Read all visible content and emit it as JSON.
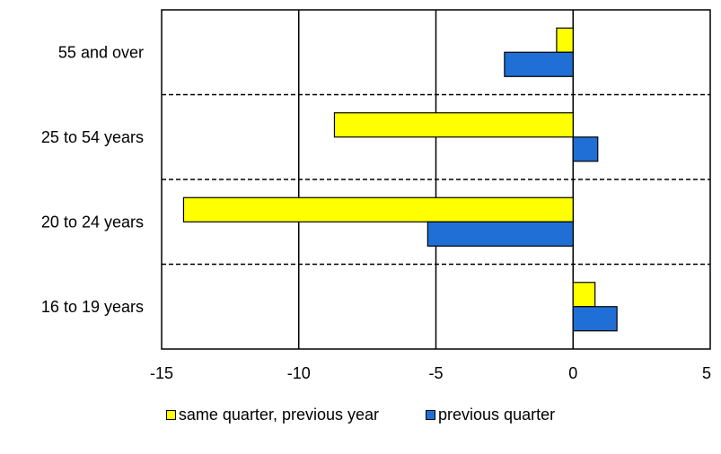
{
  "chart_data": {
    "type": "bar",
    "orientation": "horizontal",
    "categories": [
      "55 and over",
      "25 to 54 years",
      "20 to 24 years",
      "16 to 19 years"
    ],
    "series": [
      {
        "name": "same quarter, previous year",
        "color": "#ffff00",
        "values": [
          -0.6,
          -8.7,
          -14.2,
          0.8
        ]
      },
      {
        "name": "previous quarter",
        "color": "#1f6fd6",
        "values": [
          -2.5,
          0.9,
          -5.3,
          1.6
        ]
      }
    ],
    "xlim": [
      -15,
      5
    ],
    "xticks": [
      -15,
      -10,
      -5,
      0,
      5
    ],
    "xtick_labels": [
      "-15",
      "-10",
      "-5",
      "0",
      "5"
    ],
    "grid": "vertical solid gridlines; dashed separators between categories",
    "legend_position": "bottom"
  }
}
